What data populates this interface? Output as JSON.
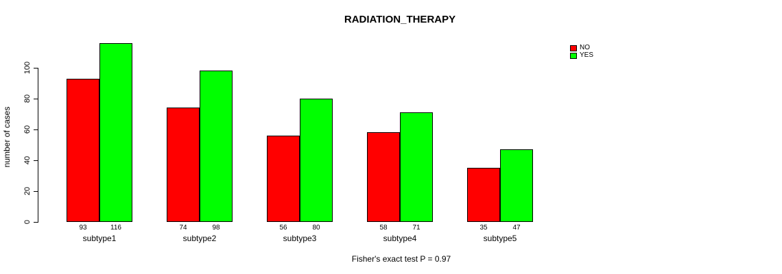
{
  "figure": {
    "background": "#ffffff",
    "text_color": "#000000"
  },
  "chart_data": {
    "type": "bar",
    "title": "RADIATION_THERAPY",
    "xlabel": "",
    "ylabel": "number of cases",
    "categories": [
      "subtype1",
      "subtype2",
      "subtype3",
      "subtype4",
      "subtype5"
    ],
    "series": [
      {
        "name": "NO",
        "color": "#ff0000",
        "values": [
          93,
          74,
          56,
          58,
          35
        ]
      },
      {
        "name": "YES",
        "color": "#00ff00",
        "values": [
          116,
          98,
          80,
          71,
          47
        ]
      }
    ],
    "bar_value_labels": [
      [
        93,
        116
      ],
      [
        74,
        98
      ],
      [
        56,
        80
      ],
      [
        58,
        71
      ],
      [
        35,
        47
      ]
    ],
    "yticks": [
      0,
      20,
      40,
      60,
      80,
      100
    ],
    "ylim": [
      0,
      116
    ],
    "grid": false,
    "legend_position": "top-right",
    "legend": [
      "NO",
      "YES"
    ],
    "annotation": "Fisher's exact test P = 0.97"
  }
}
